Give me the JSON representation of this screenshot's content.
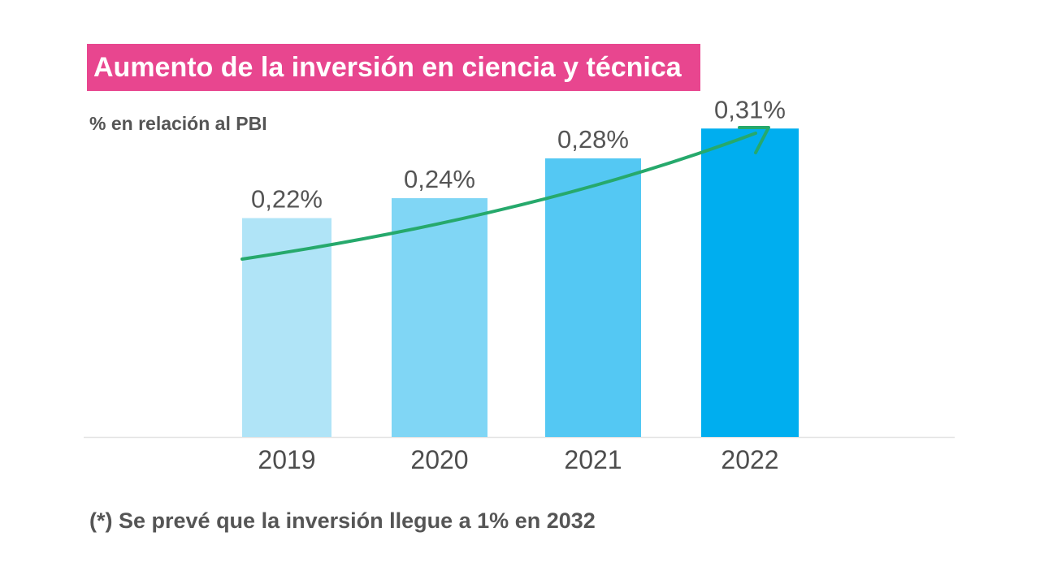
{
  "title": "Aumento de la inversión en ciencia y técnica",
  "subtitle": "% en relación al PBI",
  "footnote": "(*) Se prevé que la inversión llegue a 1% en 2032",
  "colors": {
    "title_background": "#e8468f",
    "bars": [
      "#b0e4f7",
      "#80d6f5",
      "#54c8f3",
      "#00aeef"
    ],
    "trend_arrow": "#26a96c",
    "text": "#555555"
  },
  "chart_data": {
    "type": "bar",
    "title": "Aumento de la inversión en ciencia y técnica",
    "ylabel": "% en relación al PBI",
    "categories": [
      "2019",
      "2020",
      "2021",
      "2022"
    ],
    "values": [
      0.22,
      0.24,
      0.28,
      0.31
    ],
    "data_labels": [
      "0,22%",
      "0,24%",
      "0,28%",
      "0,31%"
    ],
    "grid": false,
    "legend": "none",
    "annotations": [
      "upward trend arrow"
    ]
  }
}
